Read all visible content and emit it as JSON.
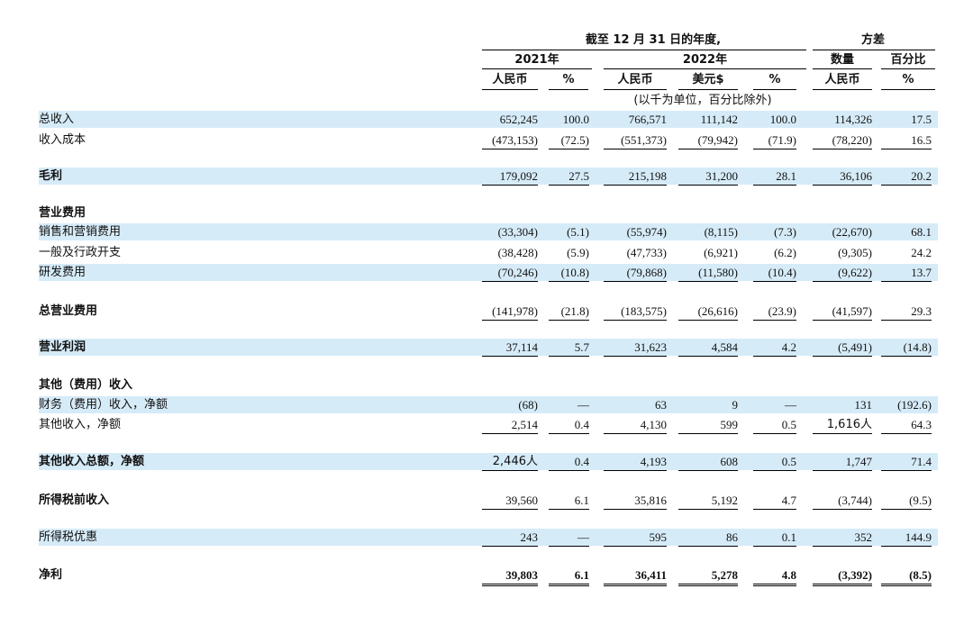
{
  "header": {
    "period": "截至 12 月 31 日的年度,",
    "variance": "方差",
    "year_2021": "2021年",
    "year_2022": "2022年",
    "amount": "数量",
    "percent_label": "百分比",
    "unit_note": "(以千为单位，百分比除外)",
    "columns": [
      "人民币",
      "%",
      "人民币",
      "美元$",
      "%",
      "人民币",
      "%"
    ]
  },
  "rows": [
    {
      "label": "总收入",
      "values": [
        "652,245",
        "100.0",
        "766,571",
        "111,142",
        "100.0",
        "114,326",
        "17.5"
      ]
    },
    {
      "label": "收入成本",
      "values": [
        "(473,153)",
        "(72.5)",
        "(551,373)",
        "(79,942)",
        "(71.9)",
        "(78,220)",
        "16.5"
      ]
    },
    {
      "label": "毛利",
      "values": [
        "179,092",
        "27.5",
        "215,198",
        "31,200",
        "28.1",
        "36,106",
        "20.2"
      ]
    },
    {
      "label": "营业费用",
      "values": []
    },
    {
      "label": "销售和营销费用",
      "values": [
        "(33,304)",
        "(5.1)",
        "(55,974)",
        "(8,115)",
        "(7.3)",
        "(22,670)",
        "68.1"
      ]
    },
    {
      "label": "一般及行政开支",
      "values": [
        "(38,428)",
        "(5.9)",
        "(47,733)",
        "(6,921)",
        "(6.2)",
        "(9,305)",
        "24.2"
      ]
    },
    {
      "label": "研发费用",
      "values": [
        "(70,246)",
        "(10.8)",
        "(79,868)",
        "(11,580)",
        "(10.4)",
        "(9,622)",
        "13.7"
      ]
    },
    {
      "label": "总营业费用",
      "values": [
        "(141,978)",
        "(21.8)",
        "(183,575)",
        "(26,616)",
        "(23.9)",
        "(41,597)",
        "29.3"
      ]
    },
    {
      "label": "营业利润",
      "values": [
        "37,114",
        "5.7",
        "31,623",
        "4,584",
        "4.2",
        "(5,491)",
        "(14.8)"
      ]
    },
    {
      "label": "其他（费用）收入",
      "values": []
    },
    {
      "label": "财务（费用）收入，净额",
      "values": [
        "(68)",
        "—",
        "63",
        "9",
        "—",
        "131",
        "(192.6)"
      ]
    },
    {
      "label": "其他收入，净额",
      "values": [
        "2,514",
        "0.4",
        "4,130",
        "599",
        "0.5",
        "1,616人",
        "64.3"
      ]
    },
    {
      "label": "其他收入总额，净额",
      "values": [
        "2,446人",
        "0.4",
        "4,193",
        "608",
        "0.5",
        "1,747",
        "71.4"
      ]
    },
    {
      "label": "所得税前收入",
      "values": [
        "39,560",
        "6.1",
        "35,816",
        "5,192",
        "4.7",
        "(3,744)",
        "(9.5)"
      ]
    },
    {
      "label": "所得税优惠",
      "values": [
        "243",
        "—",
        "595",
        "86",
        "0.1",
        "352",
        "144.9"
      ]
    },
    {
      "label": "净利",
      "values": [
        "39,803",
        "6.1",
        "36,411",
        "5,278",
        "4.8",
        "(3,392)",
        "(8.5)"
      ]
    }
  ]
}
